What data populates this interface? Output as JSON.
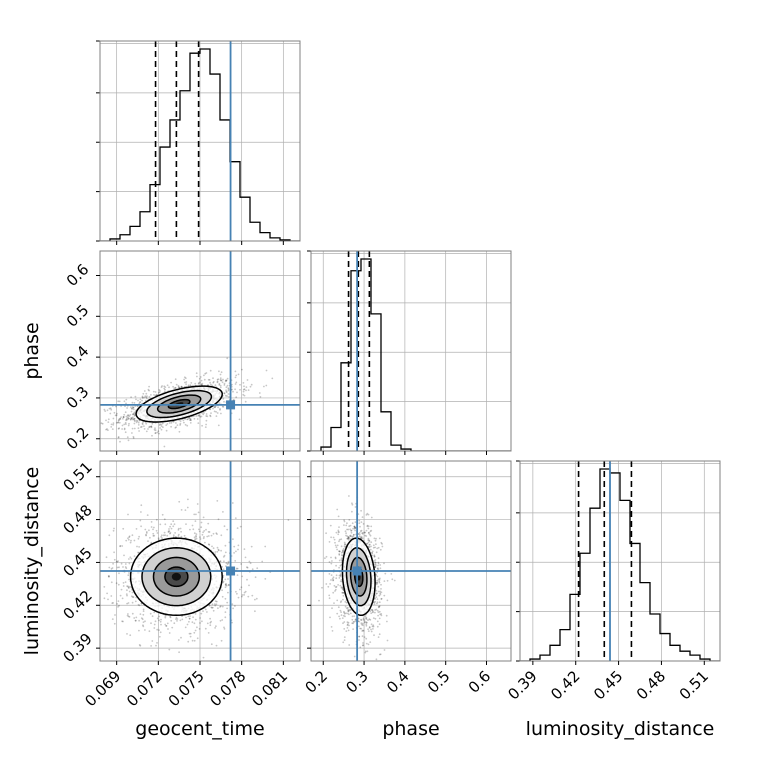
{
  "chart_data": {
    "type": "corner",
    "parameters": [
      "geocent_time",
      "phase",
      "luminosity_distance"
    ],
    "axis_labels": {
      "geocent_time": "geocent_time",
      "phase": "phase",
      "luminosity_distance": "luminosity_distance"
    },
    "ticks": {
      "geocent_time": [
        "0.069",
        "0.072",
        "0.075",
        "0.078",
        "0.081"
      ],
      "phase": [
        "0.2",
        "0.3",
        "0.4",
        "0.5",
        "0.6"
      ],
      "luminosity_distance": [
        "0.39",
        "0.42",
        "0.45",
        "0.48",
        "0.51"
      ]
    },
    "ranges": {
      "geocent_time": [
        0.0678,
        0.0822
      ],
      "phase": [
        0.17,
        0.66
      ],
      "luminosity_distance": [
        0.381,
        0.521
      ]
    },
    "truths": {
      "geocent_time": 0.0772,
      "phase": 0.283,
      "luminosity_distance": 0.444
    },
    "quantiles": {
      "geocent_time": [
        0.0718,
        0.0733,
        0.0749
      ],
      "phase": [
        0.262,
        0.286,
        0.313
      ],
      "luminosity_distance": [
        0.422,
        0.44,
        0.459
      ]
    },
    "histograms": {
      "geocent_time": {
        "edges_range": [
          0.0678,
          0.0822
        ],
        "counts": [
          0,
          1,
          3,
          7,
          14,
          27,
          45,
          58,
          72,
          90,
          92,
          80,
          58,
          38,
          21,
          9,
          4,
          1.5,
          0.5,
          0
        ]
      },
      "phase": {
        "edges_range": [
          0.17,
          0.66
        ],
        "counts": [
          0,
          2,
          12,
          45,
          92,
          98,
          70,
          20,
          3,
          1,
          0,
          0,
          0,
          0,
          0,
          0,
          0,
          0,
          0,
          0
        ]
      },
      "luminosity_distance": {
        "edges_range": [
          0.381,
          0.521
        ],
        "counts": [
          0,
          1,
          3,
          8,
          16,
          34,
          55,
          78,
          98,
          96,
          82,
          60,
          40,
          24,
          14,
          8,
          5,
          3,
          1,
          0
        ]
      }
    },
    "joint": {
      "geocent_time|phase": {
        "center": [
          0.0735,
          0.285
        ],
        "sigma": [
          0.00155,
          0.022
        ],
        "rho": 0.55
      },
      "geocent_time|luminosity_distance": {
        "center": [
          0.0733,
          0.44
        ],
        "sigma": [
          0.00165,
          0.0135
        ],
        "rho": 0.0
      },
      "phase|luminosity_distance": {
        "center": [
          0.287,
          0.44
        ],
        "sigma": [
          0.02,
          0.0135
        ],
        "rho": -0.15
      }
    },
    "grid": true,
    "colors": {
      "truth": "#4682b4",
      "contour": "#000000",
      "grid": "#b0b0b0",
      "frame": "#808080"
    }
  }
}
